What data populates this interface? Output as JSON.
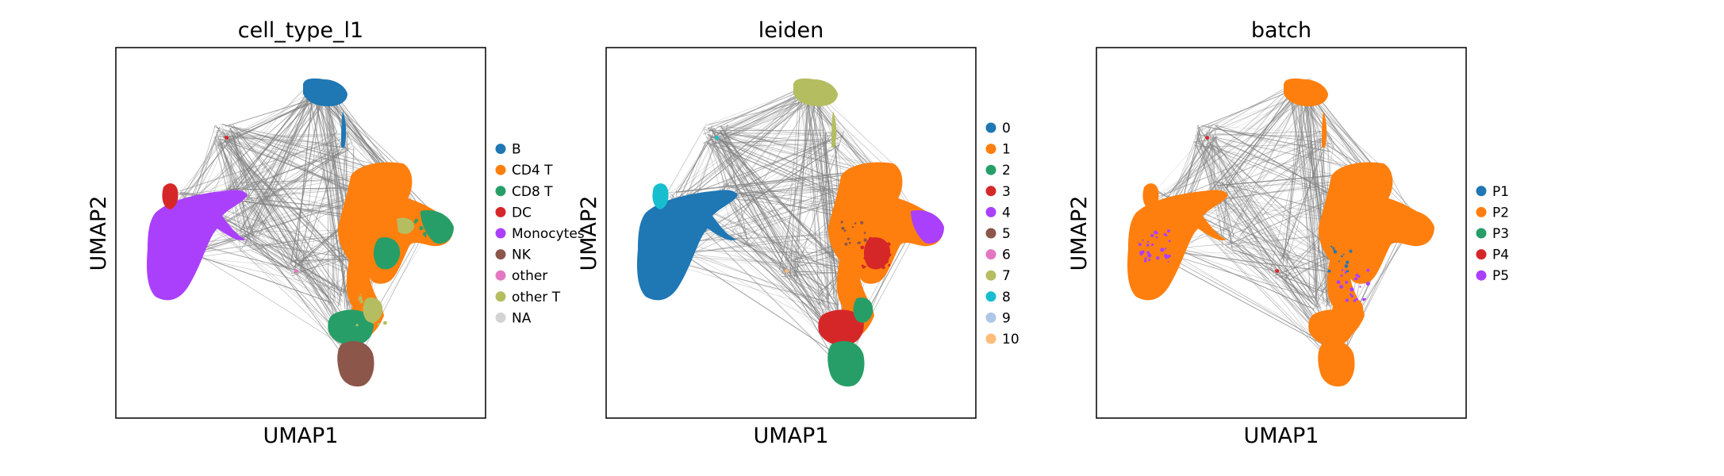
{
  "chart_data": [
    {
      "type": "scatter",
      "title": "cell_type_l1",
      "xlabel": "UMAP1",
      "ylabel": "UMAP2",
      "legend_position": "right",
      "grid": false,
      "series": [
        {
          "name": "B",
          "color": "#1f77b4"
        },
        {
          "name": "CD4 T",
          "color": "#ff7f0e"
        },
        {
          "name": "CD8 T",
          "color": "#279e68"
        },
        {
          "name": "DC",
          "color": "#d62728"
        },
        {
          "name": "Monocytes",
          "color": "#aa40fc"
        },
        {
          "name": "NK",
          "color": "#8c564b"
        },
        {
          "name": "other",
          "color": "#e377c2"
        },
        {
          "name": "other T",
          "color": "#b5bd61"
        },
        {
          "name": "NA",
          "color": "#d3d3d3"
        }
      ]
    },
    {
      "type": "scatter",
      "title": "leiden",
      "xlabel": "UMAP1",
      "ylabel": "UMAP2",
      "legend_position": "right",
      "grid": false,
      "series": [
        {
          "name": "0",
          "color": "#1f77b4"
        },
        {
          "name": "1",
          "color": "#ff7f0e"
        },
        {
          "name": "2",
          "color": "#279e68"
        },
        {
          "name": "3",
          "color": "#d62728"
        },
        {
          "name": "4",
          "color": "#aa40fc"
        },
        {
          "name": "5",
          "color": "#8c564b"
        },
        {
          "name": "6",
          "color": "#e377c2"
        },
        {
          "name": "7",
          "color": "#b5bd61"
        },
        {
          "name": "8",
          "color": "#17becf"
        },
        {
          "name": "9",
          "color": "#aec7e8"
        },
        {
          "name": "10",
          "color": "#ffbb78"
        }
      ]
    },
    {
      "type": "scatter",
      "title": "batch",
      "xlabel": "UMAP1",
      "ylabel": "UMAP2",
      "legend_position": "right",
      "grid": false,
      "series": [
        {
          "name": "P1",
          "color": "#1f77b4"
        },
        {
          "name": "P2",
          "color": "#ff7f0e"
        },
        {
          "name": "P3",
          "color": "#279e68"
        },
        {
          "name": "P4",
          "color": "#d62728"
        },
        {
          "name": "P5",
          "color": "#aa40fc"
        }
      ]
    }
  ]
}
